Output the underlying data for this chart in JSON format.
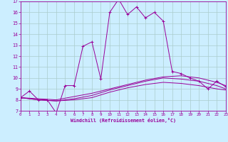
{
  "xlabel": "Windchill (Refroidissement éolien,°C)",
  "background_color": "#cceeff",
  "line_color": "#990099",
  "grid_color": "#aacccc",
  "xlim": [
    0,
    23
  ],
  "ylim": [
    7,
    17
  ],
  "yticks": [
    7,
    8,
    9,
    10,
    11,
    12,
    13,
    14,
    15,
    16,
    17
  ],
  "xticks": [
    0,
    1,
    2,
    3,
    4,
    5,
    6,
    7,
    8,
    9,
    10,
    11,
    12,
    13,
    14,
    15,
    16,
    17,
    18,
    19,
    20,
    21,
    22,
    23
  ],
  "series1": [
    [
      0,
      8.2
    ],
    [
      1,
      8.8
    ],
    [
      2,
      8.0
    ],
    [
      3,
      8.0
    ],
    [
      4,
      6.8
    ],
    [
      5,
      9.3
    ],
    [
      6,
      9.3
    ],
    [
      7,
      12.9
    ],
    [
      8,
      13.3
    ],
    [
      9,
      9.9
    ],
    [
      10,
      16.0
    ],
    [
      11,
      17.2
    ],
    [
      12,
      15.8
    ],
    [
      13,
      16.5
    ],
    [
      14,
      15.5
    ],
    [
      15,
      16.0
    ],
    [
      16,
      15.2
    ],
    [
      17,
      10.6
    ],
    [
      18,
      10.4
    ],
    [
      19,
      10.0
    ],
    [
      20,
      9.7
    ],
    [
      21,
      9.0
    ],
    [
      22,
      9.7
    ],
    [
      23,
      9.2
    ]
  ],
  "series2": [
    [
      0,
      8.2
    ],
    [
      2,
      8.1
    ],
    [
      4,
      8.0
    ],
    [
      6,
      8.3
    ],
    [
      8,
      8.6
    ],
    [
      10,
      9.0
    ],
    [
      12,
      9.4
    ],
    [
      14,
      9.8
    ],
    [
      16,
      10.1
    ],
    [
      18,
      10.2
    ],
    [
      20,
      10.0
    ],
    [
      22,
      9.6
    ],
    [
      23,
      9.3
    ]
  ],
  "series3": [
    [
      0,
      8.2
    ],
    [
      2,
      8.0
    ],
    [
      4,
      7.9
    ],
    [
      6,
      8.1
    ],
    [
      8,
      8.4
    ],
    [
      10,
      8.9
    ],
    [
      12,
      9.3
    ],
    [
      14,
      9.7
    ],
    [
      16,
      10.0
    ],
    [
      18,
      9.9
    ],
    [
      20,
      9.7
    ],
    [
      22,
      9.3
    ],
    [
      23,
      9.0
    ]
  ],
  "series4": [
    [
      0,
      8.2
    ],
    [
      2,
      8.0
    ],
    [
      4,
      7.9
    ],
    [
      6,
      8.0
    ],
    [
      8,
      8.2
    ],
    [
      10,
      8.7
    ],
    [
      12,
      9.1
    ],
    [
      14,
      9.4
    ],
    [
      16,
      9.6
    ],
    [
      18,
      9.5
    ],
    [
      20,
      9.3
    ],
    [
      22,
      9.0
    ],
    [
      23,
      8.9
    ]
  ]
}
